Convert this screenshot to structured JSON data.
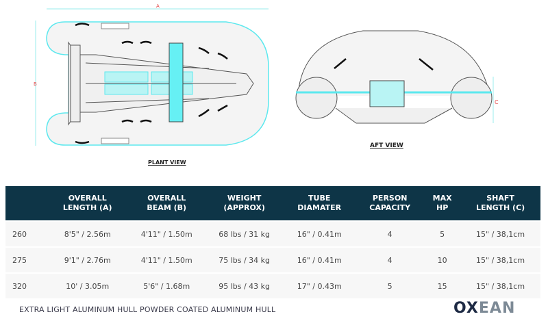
{
  "drawings": {
    "plant_view_label": "PLANT VIEW",
    "aft_view_label": "AFT VIEW",
    "dim_a": "A",
    "dim_b": "B",
    "dim_c": "C",
    "hull_logo": "OXEAN",
    "accent_color": "#5ce8ee",
    "dim_color": "#e34b4b"
  },
  "table": {
    "headers": [
      "",
      "OVERALL LENGTH (A)",
      "OVERALL BEAM (B)",
      "WEIGHT (APPROX)",
      "TUBE DIAMATER",
      "PERSON CAPACITY",
      "MAX HP",
      "SHAFT LENGTH (C)"
    ],
    "header_lines": [
      [
        "",
        ""
      ],
      [
        "OVERALL",
        "LENGTH (A)"
      ],
      [
        "OVERALL",
        "BEAM (B)"
      ],
      [
        "WEIGHT",
        "(APPROX)"
      ],
      [
        "TUBE",
        "DIAMATER"
      ],
      [
        "PERSON",
        "CAPACITY"
      ],
      [
        "MAX",
        "HP"
      ],
      [
        "SHAFT",
        "LENGTH (C)"
      ]
    ],
    "rows": [
      [
        "260",
        "8'5\" / 2.56m",
        "4'11\" / 1.50m",
        "68 lbs / 31 kg",
        "16\" / 0.41m",
        "4",
        "5",
        "15\" / 38,1cm"
      ],
      [
        "275",
        "9'1\" / 2.76m",
        "4'11\" / 1.50m",
        "75 lbs / 34 kg",
        "16\" / 0.41m",
        "4",
        "10",
        "15\" / 38,1cm"
      ],
      [
        "320",
        "10' / 3.05m",
        "5'6\" / 1.68m",
        "95 lbs / 43 kg",
        "17\" / 0.43m",
        "5",
        "15",
        "15\" / 38,1cm"
      ]
    ],
    "header_color": "#0e3547"
  },
  "footer": {
    "text": "EXTRA LIGHT ALUMINUM HULL POWDER COATED ALUMINUM HULL",
    "logo_o": "OX",
    "logo_rest": "EAN"
  }
}
